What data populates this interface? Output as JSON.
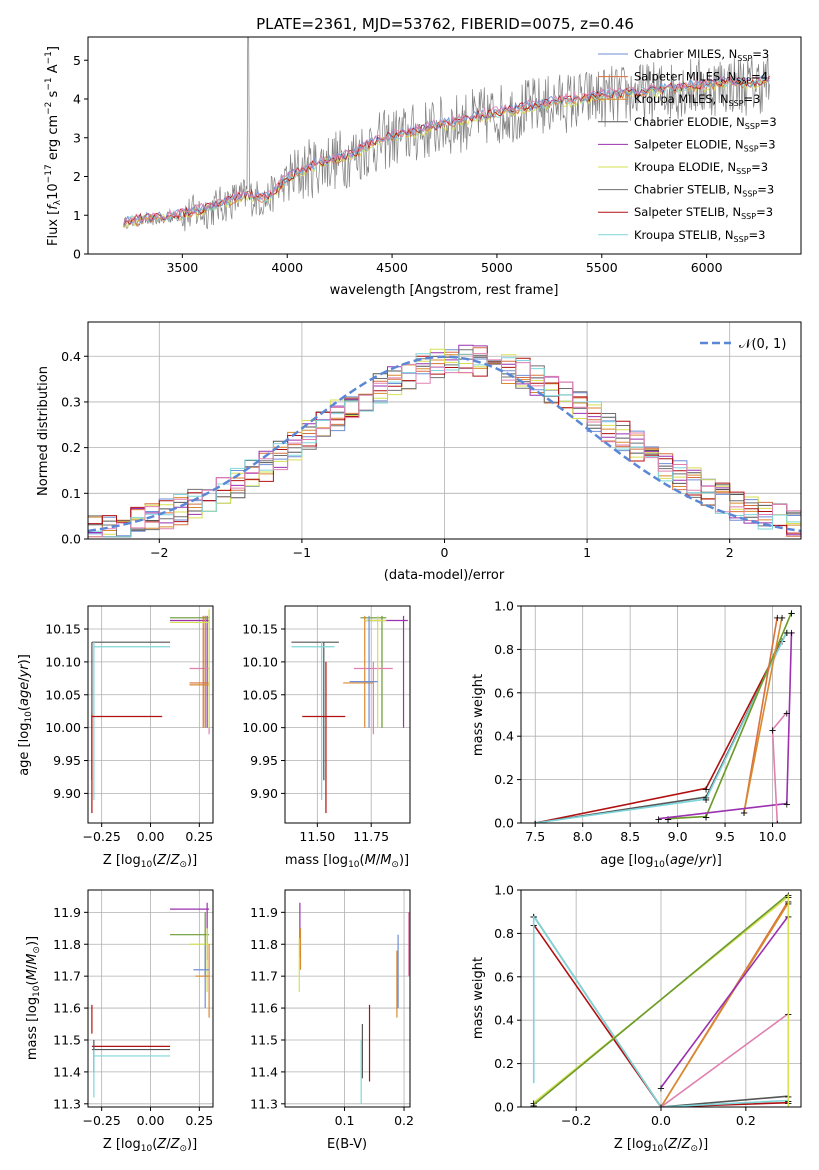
{
  "colors": {
    "chabrier_miles": "#6f8fd6",
    "salpeter_miles": "#d8703f",
    "kroupa_miles": "#d88a2f",
    "chabrier_elodie": "#555555",
    "salpeter_elodie": "#9b30b0",
    "kroupa_elodie": "#d7e050",
    "chabrier_stelib": "#707070",
    "salpeter_stelib": "#b01010",
    "kroupa_stelib": "#7fd6da",
    "pink": "#e080b0",
    "green": "#6a9a30",
    "gauss": "#5b88d6",
    "grid": "#b0b0b0"
  },
  "chart_data": [
    {
      "type": "line",
      "title": "PLATE=2361, MJD=53762, FIBERID=0075, z=0.46",
      "xlabel": "wavelength [Angstrom, rest frame]",
      "ylabel": "Flux [f_λ10^-17 erg cm^-2 s^-1 A^-1]",
      "xlim": [
        3050,
        6450
      ],
      "ylim": [
        0,
        5.6
      ],
      "xticks": [
        3500,
        4000,
        4500,
        5000,
        5500,
        6000
      ],
      "yticks": [
        0,
        1,
        2,
        3,
        4,
        5
      ],
      "grid": false,
      "legend_position": "top-right",
      "legend": [
        {
          "base": "Chabrier MILES, N",
          "sub": "SSP",
          "tail": "=3",
          "color_key": "chabrier_miles"
        },
        {
          "base": "Salpeter MILES, N",
          "sub": "SSP",
          "tail": "=4",
          "color_key": "salpeter_miles"
        },
        {
          "base": "Kroupa MILES, N",
          "sub": "SSP",
          "tail": "=3",
          "color_key": "kroupa_miles"
        },
        {
          "base": "Chabrier ELODIE, N",
          "sub": "SSP",
          "tail": "=3",
          "color_key": "chabrier_elodie"
        },
        {
          "base": "Salpeter ELODIE, N",
          "sub": "SSP",
          "tail": "=3",
          "color_key": "salpeter_elodie"
        },
        {
          "base": "Kroupa ELODIE, N",
          "sub": "SSP",
          "tail": "=3",
          "color_key": "kroupa_elodie"
        },
        {
          "base": "Chabrier STELIB, N",
          "sub": "SSP",
          "tail": "=3",
          "color_key": "chabrier_stelib"
        },
        {
          "base": "Salpeter STELIB, N",
          "sub": "SSP",
          "tail": "=3",
          "color_key": "salpeter_stelib"
        },
        {
          "base": "Kroupa STELIB, N",
          "sub": "SSP",
          "tail": "=3",
          "color_key": "kroupa_stelib"
        }
      ],
      "continuum": {
        "x": [
          3220,
          3300,
          3400,
          3500,
          3600,
          3700,
          3800,
          3900,
          4000,
          4100,
          4200,
          4300,
          4400,
          4500,
          4600,
          4700,
          4800,
          4900,
          5000,
          5100,
          5200,
          5300,
          5400,
          5500,
          5600,
          5700,
          5800,
          5900,
          6000,
          6100,
          6200,
          6300
        ],
        "y": [
          0.8,
          0.85,
          0.9,
          1.0,
          1.1,
          1.3,
          1.5,
          1.4,
          1.9,
          2.2,
          2.4,
          2.5,
          2.8,
          3.0,
          3.1,
          3.25,
          3.35,
          3.5,
          3.6,
          3.7,
          3.8,
          3.9,
          3.95,
          4.05,
          4.1,
          4.15,
          4.2,
          4.3,
          4.3,
          4.4,
          4.35,
          4.45
        ]
      }
    },
    {
      "type": "step",
      "xlabel": "(data-model)/error",
      "ylabel": "Normed distribution",
      "xlim": [
        -2.5,
        2.5
      ],
      "ylim": [
        0,
        0.475
      ],
      "xticks": [
        -2,
        -1,
        0,
        1,
        2
      ],
      "yticks": [
        0.0,
        0.1,
        0.2,
        0.3,
        0.4
      ],
      "grid": true,
      "legend_position": "top-right",
      "gauss_label": "𝒩(0, 1)",
      "bin_width": 0.1
    },
    {
      "type": "errorbar",
      "xlabel_main": "Z [log",
      "xlabel_sub": "10",
      "xlabel_tail": "(Z/Z",
      "xlabel_end": ")]",
      "ylabel": "age  [log10(age/yr)]",
      "xlim": [
        -0.32,
        0.32
      ],
      "ylim": [
        9.855,
        10.185
      ],
      "xticks": [
        -0.25,
        0.0,
        0.25
      ],
      "yticks": [
        9.9,
        9.95,
        10.0,
        10.05,
        10.1,
        10.15
      ],
      "grid": true
    },
    {
      "type": "errorbar",
      "xlabel": "mass [log10(M/M☉)]",
      "xlim": [
        11.35,
        11.93
      ],
      "ylim": [
        9.855,
        10.185
      ],
      "xticks": [
        11.5,
        11.75
      ],
      "yticks": [
        9.9,
        9.95,
        10.0,
        10.05,
        10.1,
        10.15
      ],
      "grid": true
    },
    {
      "type": "line",
      "xlabel": "age  [log10(age/yr)]",
      "ylabel": "mass weight",
      "xlim": [
        7.35,
        10.3
      ],
      "ylim": [
        0,
        1.0
      ],
      "xticks": [
        7.5,
        8.0,
        8.5,
        9.0,
        9.5,
        10.0
      ],
      "yticks": [
        0.0,
        0.2,
        0.4,
        0.6,
        0.8,
        1.0
      ],
      "grid": true
    },
    {
      "type": "errorbar",
      "xlabel": "Z [log10(Z/Z☉)]",
      "ylabel": "mass [log10(M/M☉)]",
      "xlim": [
        -0.32,
        0.32
      ],
      "ylim": [
        11.29,
        11.97
      ],
      "xticks": [
        -0.25,
        0.0,
        0.25
      ],
      "yticks": [
        11.3,
        11.4,
        11.5,
        11.6,
        11.7,
        11.8,
        11.9
      ],
      "grid": true
    },
    {
      "type": "errorbar",
      "xlabel": "E(B-V)",
      "xlim": [
        0.0,
        0.21
      ],
      "ylim": [
        11.29,
        11.97
      ],
      "xticks": [
        0.1,
        0.2
      ],
      "yticks": [
        11.3,
        11.4,
        11.5,
        11.6,
        11.7,
        11.8,
        11.9
      ],
      "grid": true
    },
    {
      "type": "line",
      "xlabel": "Z [log10(Z/Z☉)]",
      "ylabel": "mass weight",
      "xlim": [
        -0.33,
        0.33
      ],
      "ylim": [
        0,
        1.0
      ],
      "xticks": [
        -0.2,
        0.0,
        0.2
      ],
      "yticks": [
        0.0,
        0.2,
        0.4,
        0.6,
        0.8,
        1.0
      ],
      "grid": true
    }
  ],
  "tick_labels": {
    "p1x": [
      "3500",
      "4000",
      "4500",
      "5000",
      "5500",
      "6000"
    ],
    "p1y": [
      "0",
      "1",
      "2",
      "3",
      "4",
      "5"
    ],
    "p2x": [
      "−2",
      "−1",
      "0",
      "1",
      "2"
    ],
    "p2y": [
      "0.0",
      "0.1",
      "0.2",
      "0.3",
      "0.4"
    ],
    "ageY": [
      "9.90",
      "9.95",
      "10.00",
      "10.05",
      "10.10",
      "10.15"
    ],
    "zX": [
      "−0.25",
      "0.00",
      "0.25"
    ],
    "massX": [
      "11.50",
      "11.75"
    ],
    "p5x": [
      "7.5",
      "8.0",
      "8.5",
      "9.0",
      "9.5",
      "10.0"
    ],
    "wY": [
      "0.0",
      "0.2",
      "0.4",
      "0.6",
      "0.8",
      "1.0"
    ],
    "massY": [
      "11.3",
      "11.4",
      "11.5",
      "11.6",
      "11.7",
      "11.8",
      "11.9"
    ],
    "ebvX": [
      "0.1",
      "0.2"
    ],
    "p8x": [
      "−0.2",
      "0.0",
      "0.2"
    ]
  },
  "labels": {
    "title": "PLATE=2361, MJD=53762, FIBERID=0075, z=0.46",
    "p1x": "wavelength [Angstrom, rest frame]",
    "p2x": "(data-model)/error",
    "p2y": "Normed distribution",
    "p5y": "mass weight",
    "p8y": "mass weight",
    "ebv": "E(B-V)"
  }
}
